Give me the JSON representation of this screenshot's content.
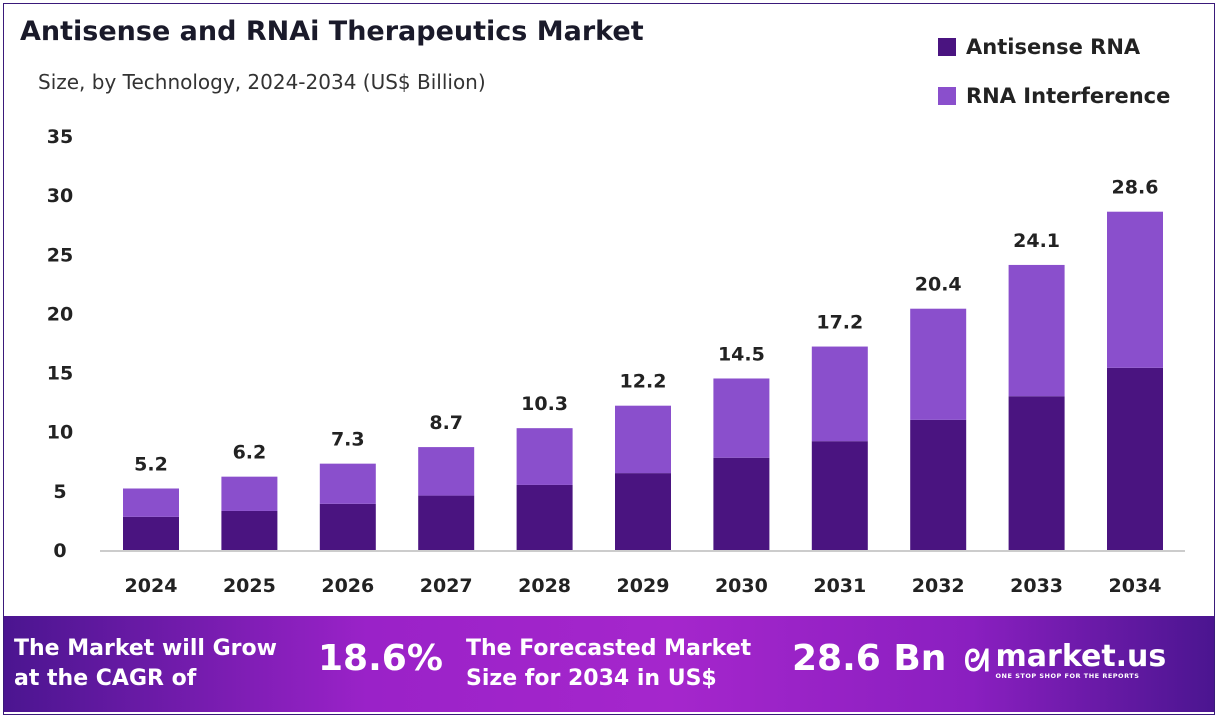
{
  "chart_data": {
    "type": "bar",
    "stacked": true,
    "title": "Antisense and RNAi Therapeutics Market",
    "subtitle": "Size, by Technology, 2024-2034 (US$ Billion)",
    "categories": [
      "2024",
      "2025",
      "2026",
      "2027",
      "2028",
      "2029",
      "2030",
      "2031",
      "2032",
      "2033",
      "2034"
    ],
    "series": [
      {
        "name": "Antisense RNA",
        "color": "#4a1480",
        "values": [
          2.8,
          3.3,
          3.9,
          4.6,
          5.5,
          6.5,
          7.8,
          9.2,
          11.0,
          13.0,
          15.4
        ]
      },
      {
        "name": "RNA Interference",
        "color": "#8a4fcc",
        "values": [
          2.4,
          2.9,
          3.4,
          4.1,
          4.8,
          5.7,
          6.7,
          8.0,
          9.4,
          11.1,
          13.2
        ]
      }
    ],
    "totals": [
      "5.2",
      "6.2",
      "7.3",
      "8.7",
      "10.3",
      "12.2",
      "14.5",
      "17.2",
      "20.4",
      "24.1",
      "28.6"
    ],
    "yticks": [
      "0",
      "5",
      "10",
      "15",
      "20",
      "25",
      "30",
      "35"
    ],
    "ylim": [
      0,
      35
    ],
    "grid": false,
    "legend_position": "top-right"
  },
  "banner": {
    "cagr_text_1": "The Market will Grow",
    "cagr_text_2": "at the CAGR of",
    "cagr_value": "18.6%",
    "forecast_text_1": "The Forecasted Market",
    "forecast_text_2": "Size for 2034 in US$",
    "forecast_value": "28.6 Bn",
    "logo_name": "market.us",
    "logo_tagline": "ONE STOP SHOP FOR THE REPORTS"
  }
}
